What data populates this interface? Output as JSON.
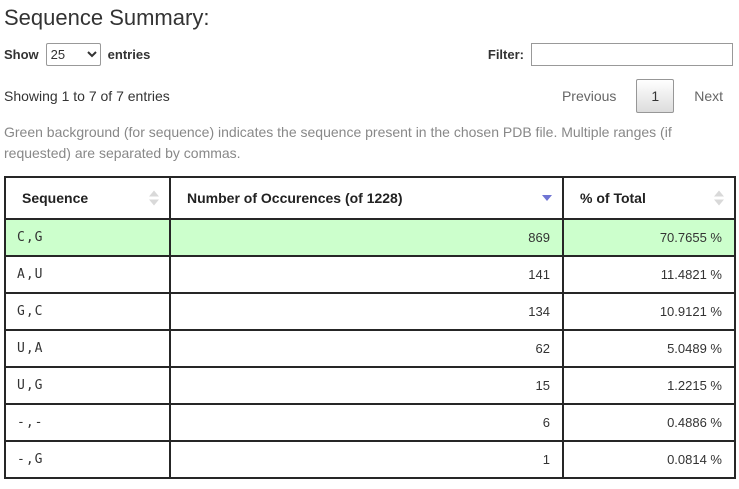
{
  "page": {
    "title": "Sequence Summary:"
  },
  "controls": {
    "show_label": "Show",
    "show_value": "25",
    "entries_label": "entries",
    "filter_label": "Filter:",
    "filter_value": ""
  },
  "info": {
    "showing_text": "Showing 1 to 7 of 7 entries"
  },
  "pagination": {
    "previous_label": "Previous",
    "current_page": "1",
    "next_label": "Next"
  },
  "note": "Green background (for sequence) indicates the sequence present in the chosen PDB file. Multiple ranges (if requested) are separated by commas.",
  "table": {
    "columns": [
      {
        "label": "Sequence",
        "sort": "both"
      },
      {
        "label": "Number of Occurences (of 1228)",
        "sort": "desc"
      },
      {
        "label": "% of Total",
        "sort": "both"
      }
    ],
    "rows": [
      {
        "sequence": "C,G",
        "occurrences": "869",
        "percent": "70.7655 %",
        "highlighted": true
      },
      {
        "sequence": "A,U",
        "occurrences": "141",
        "percent": "11.4821 %",
        "highlighted": false
      },
      {
        "sequence": "G,C",
        "occurrences": "134",
        "percent": "10.9121 %",
        "highlighted": false
      },
      {
        "sequence": "U,A",
        "occurrences": "62",
        "percent": "5.0489 %",
        "highlighted": false
      },
      {
        "sequence": "U,G",
        "occurrences": "15",
        "percent": "1.2215 %",
        "highlighted": false
      },
      {
        "sequence": "-,-",
        "occurrences": "6",
        "percent": "0.4886 %",
        "highlighted": false
      },
      {
        "sequence": "-,G",
        "occurrences": "1",
        "percent": "0.0814 %",
        "highlighted": false
      }
    ]
  },
  "icons": {
    "sort_both": "sort-both-icon",
    "sort_desc": "sort-descending-icon",
    "select_caret": "dropdown-caret-icon"
  },
  "colors": {
    "highlight_green": "#ccffcc",
    "sort_active": "#6f74d3",
    "sort_inactive": "#d9d9d9",
    "table_border": "#262626"
  }
}
